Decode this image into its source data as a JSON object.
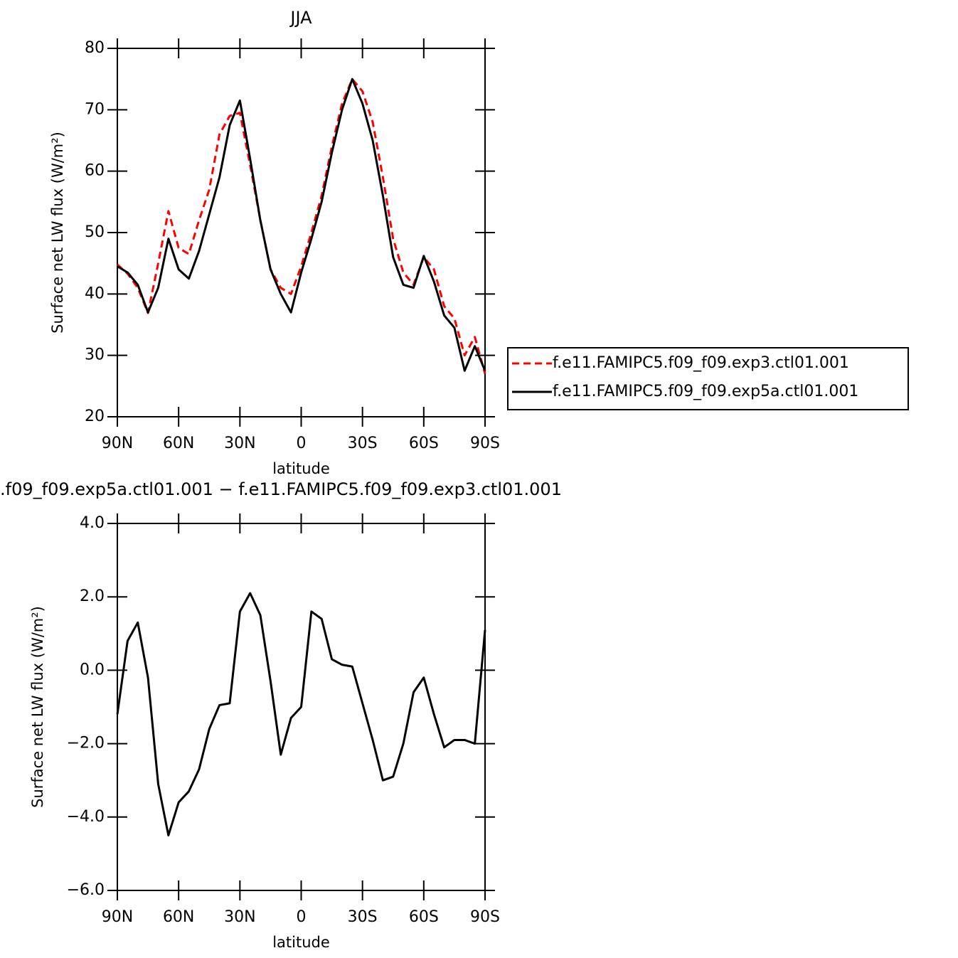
{
  "chart_data": [
    {
      "type": "line",
      "title": "JJA",
      "xlabel": "latitude",
      "ylabel": "Surface net LW flux (W/m²)",
      "x": [
        90,
        85,
        80,
        75,
        70,
        65,
        60,
        55,
        50,
        45,
        40,
        35,
        30,
        25,
        20,
        15,
        10,
        5,
        0,
        -5,
        -10,
        -15,
        -20,
        -25,
        -30,
        -35,
        -40,
        -45,
        -50,
        -55,
        -60,
        -65,
        -70,
        -75,
        -80,
        -85,
        -90
      ],
      "xlim": [
        90,
        -90
      ],
      "xticks": [
        {
          "value": 90,
          "label": "90N"
        },
        {
          "value": 60,
          "label": "60N"
        },
        {
          "value": 30,
          "label": "30N"
        },
        0,
        {
          "value": -30,
          "label": "30S"
        },
        {
          "value": -60,
          "label": "60S"
        },
        {
          "value": -90,
          "label": "90S"
        }
      ],
      "ylim": [
        20,
        80
      ],
      "yticks": [
        20,
        30,
        40,
        50,
        60,
        70,
        80
      ],
      "legend": "right",
      "series": [
        {
          "name": "f.e11.FAMIPC5.f09_f09.exp3.ctl01.001",
          "color": "#ff0000",
          "dash": "dashed",
          "values": [
            44.8,
            43.3,
            41,
            36.9,
            45,
            53.5,
            47.5,
            46.5,
            52,
            57,
            66,
            69,
            69.5,
            61,
            52,
            44,
            41,
            40,
            44.5,
            50,
            56,
            64,
            71,
            75,
            73,
            68,
            59,
            49,
            43.5,
            41.5,
            46,
            44,
            38,
            36,
            30,
            33,
            27
          ]
        },
        {
          "name": "f.e11.FAMIPC5.f09_f09.exp5a.ctl01.001",
          "color": "#000000",
          "dash": "solid",
          "values": [
            44.5,
            43.5,
            41.5,
            37,
            41,
            49,
            44,
            42.5,
            47,
            53,
            59,
            67.5,
            71.5,
            62,
            52,
            44,
            40,
            37,
            43.5,
            49,
            55,
            63,
            70,
            75,
            71,
            65,
            56,
            46,
            41.5,
            41,
            46.2,
            42,
            36.5,
            34.5,
            27.5,
            31.5,
            27.5
          ]
        }
      ]
    },
    {
      "type": "line",
      "title": ".f09_f09.exp5a.ctl01.001 − f.e11.FAMIPC5.f09_f09.exp3.ctl01.001",
      "xlabel": "latitude",
      "ylabel": "Surface net LW flux (W/m²)",
      "x": [
        90,
        85,
        80,
        75,
        70,
        65,
        60,
        55,
        50,
        45,
        40,
        35,
        30,
        25,
        20,
        15,
        10,
        5,
        0,
        -5,
        -10,
        -15,
        -20,
        -25,
        -30,
        -35,
        -40,
        -45,
        -50,
        -55,
        -60,
        -65,
        -70,
        -75,
        -80,
        -85,
        -90
      ],
      "xlim": [
        90,
        -90
      ],
      "xticks": [
        {
          "value": 90,
          "label": "90N"
        },
        {
          "value": 60,
          "label": "60N"
        },
        {
          "value": 30,
          "label": "30N"
        },
        0,
        {
          "value": -30,
          "label": "30S"
        },
        {
          "value": -60,
          "label": "60S"
        },
        {
          "value": -90,
          "label": "90S"
        }
      ],
      "ylim": [
        -6,
        4
      ],
      "yticks": [
        {
          "value": -6,
          "label": "−6.0"
        },
        {
          "value": -4,
          "label": "−4.0"
        },
        {
          "value": -2,
          "label": "−2.0"
        },
        {
          "value": 0,
          "label": "0.0"
        },
        {
          "value": 2,
          "label": "2.0"
        },
        {
          "value": 4,
          "label": "4.0"
        }
      ],
      "color": "#000000",
      "values": [
        -1.2,
        0.8,
        1.3,
        -0.2,
        -3.1,
        -4.5,
        -3.6,
        -3.3,
        -2.7,
        -1.6,
        -0.95,
        -0.9,
        1.6,
        2.1,
        1.5,
        -0.3,
        -2.3,
        -1.3,
        -1.0,
        1.6,
        1.4,
        0.3,
        0.15,
        0.1,
        -0.9,
        -1.9,
        -3.0,
        -2.9,
        -2.0,
        -0.6,
        -0.2,
        -1.2,
        -2.1,
        -1.9,
        -1.9,
        -2.0,
        1.1
      ]
    }
  ]
}
